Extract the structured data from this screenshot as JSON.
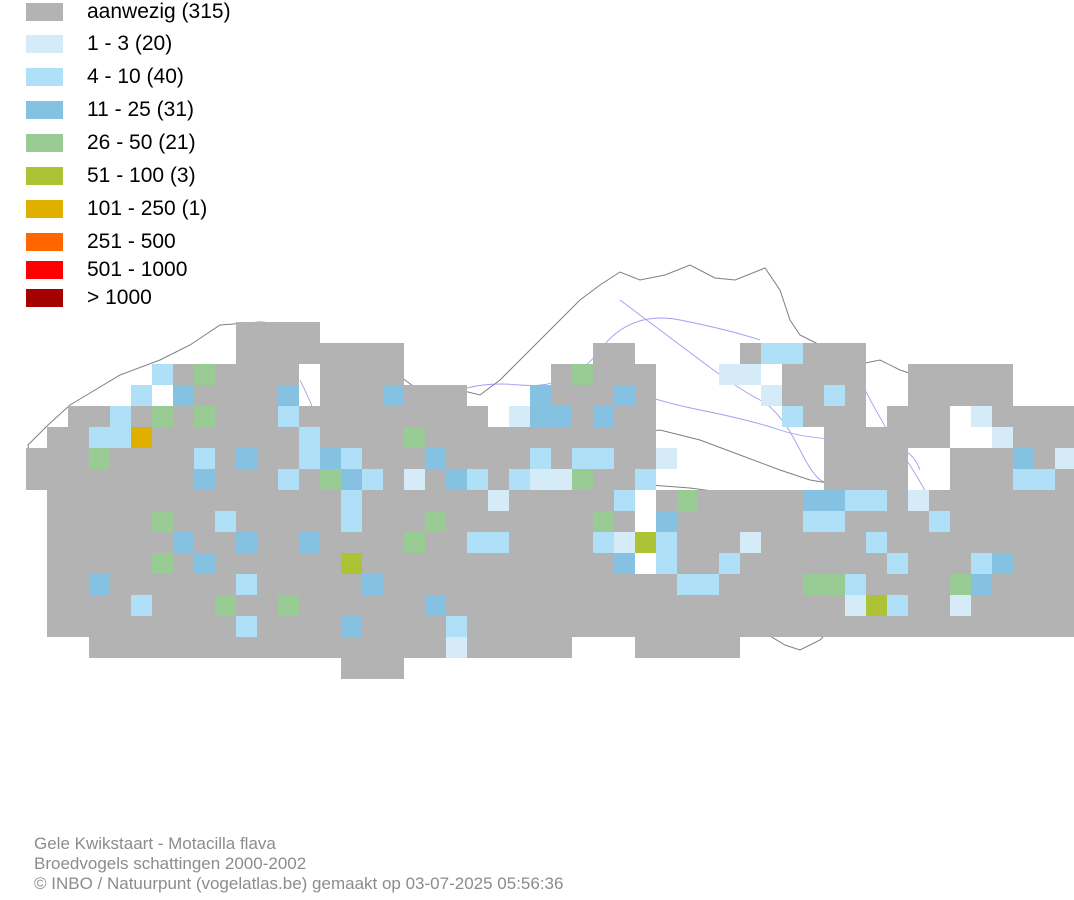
{
  "legend": {
    "items": [
      {
        "label": "aanwezig (315)",
        "color": "#b3b3b3"
      },
      {
        "label": "1 - 3 (20)",
        "color": "#d6ebf8"
      },
      {
        "label": "4 - 10 (40)",
        "color": "#b0e0f7"
      },
      {
        "label": "11 - 25 (31)",
        "color": "#85c1e0"
      },
      {
        "label": "26 - 50 (21)",
        "color": "#98cc94"
      },
      {
        "label": "51 - 100 (3)",
        "color": "#adc235"
      },
      {
        "label": "101 - 250 (1)",
        "color": "#e0b000"
      },
      {
        "label": "251 - 500",
        "color": "#ff6600"
      },
      {
        "label": "501 - 1000",
        "color": "#ff0000"
      },
      {
        "label": "> 1000",
        "color": "#a50000"
      }
    ]
  },
  "footer": {
    "line1": "Gele Kwikstaart - Motacilla flava",
    "line2": "Broedvogels schattingen 2000-2002",
    "line3": "© INBO / Natuurpunt (vogelatlas.be) gemaakt op 03-07-2025 05:56:36"
  },
  "map": {
    "border_color": "#7f7f7f",
    "river_color": "#8888ee"
  }
}
